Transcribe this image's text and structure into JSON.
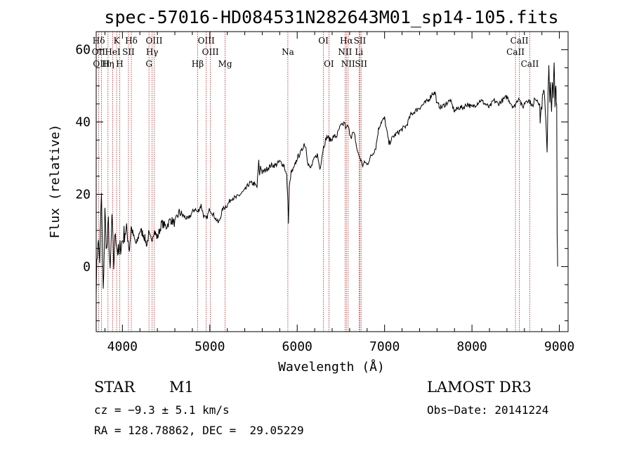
{
  "chart_data": {
    "type": "line",
    "title": "spec-57016-HD084531N282643M01_sp14-105.fits",
    "xlabel": "Wavelength (Å)",
    "ylabel": "Flux (relative)",
    "xlim": [
      3700,
      9100
    ],
    "ylim": [
      -18,
      65
    ],
    "xticks": [
      4000,
      5000,
      6000,
      7000,
      8000,
      9000
    ],
    "yticks": [
      0,
      20,
      40,
      60
    ],
    "series": [
      {
        "name": "spectrum",
        "x": [
          3700,
          3720,
          3740,
          3760,
          3780,
          3800,
          3820,
          3840,
          3860,
          3880,
          3900,
          3920,
          3940,
          3960,
          3980,
          4000,
          4030,
          4060,
          4080,
          4100,
          4130,
          4160,
          4200,
          4240,
          4280,
          4300,
          4330,
          4360,
          4400,
          4450,
          4500,
          4550,
          4600,
          4650,
          4700,
          4750,
          4800,
          4830,
          4860,
          4900,
          4930,
          4960,
          5000,
          5050,
          5100,
          5150,
          5200,
          5250,
          5300,
          5350,
          5400,
          5450,
          5500,
          5540,
          5560,
          5570,
          5580,
          5600,
          5650,
          5700,
          5750,
          5800,
          5850,
          5880,
          5895,
          5900,
          5910,
          5930,
          5960,
          6000,
          6050,
          6080,
          6100,
          6120,
          6150,
          6200,
          6230,
          6260,
          6300,
          6340,
          6380,
          6420,
          6450,
          6480,
          6500,
          6520,
          6540,
          6560,
          6580,
          6600,
          6620,
          6640,
          6660,
          6680,
          6700,
          6720,
          6750,
          6780,
          6800,
          6830,
          6860,
          6900,
          6930,
          6960,
          7000,
          7050,
          7100,
          7150,
          7200,
          7250,
          7300,
          7350,
          7400,
          7450,
          7500,
          7550,
          7580,
          7600,
          7650,
          7700,
          7750,
          7800,
          7850,
          7900,
          7950,
          8000,
          8050,
          8100,
          8150,
          8200,
          8250,
          8300,
          8350,
          8400,
          8450,
          8480,
          8500,
          8520,
          8540,
          8560,
          8580,
          8600,
          8620,
          8650,
          8680,
          8700,
          8720,
          8740,
          8760,
          8770,
          8780,
          8800,
          8820,
          8840,
          8850,
          8860,
          8870,
          8880,
          8890,
          8900,
          8910,
          8920,
          8930,
          8940,
          8950,
          8960,
          8965,
          8970,
          8975,
          8980
        ],
        "values": [
          -5,
          8,
          2,
          20,
          -8,
          15,
          4,
          12,
          -3,
          14,
          0,
          10,
          5,
          3,
          6,
          7,
          10,
          9,
          5,
          11,
          8,
          6,
          10,
          9,
          6,
          9,
          7,
          10,
          8,
          12,
          11,
          13,
          12,
          15,
          14,
          13,
          15,
          16,
          15,
          17,
          14,
          13,
          16,
          14,
          12,
          16,
          17,
          19,
          19,
          20,
          21,
          23,
          23,
          22,
          29,
          25,
          28,
          26,
          27,
          28,
          28,
          29,
          28,
          25,
          17,
          12,
          22,
          26,
          27,
          30,
          32,
          34,
          33,
          29,
          27,
          30,
          31,
          27,
          33,
          36,
          35,
          36,
          36,
          38,
          39,
          39,
          40,
          38,
          39,
          37,
          36,
          37,
          36,
          33,
          31,
          30,
          28,
          29,
          28,
          30,
          31,
          33,
          38,
          40,
          41,
          34,
          36,
          37,
          38,
          39,
          42,
          43,
          44,
          45,
          46,
          48,
          48,
          45,
          44,
          45,
          46,
          43,
          44,
          44,
          45,
          44,
          45,
          46,
          45,
          44,
          46,
          45,
          46,
          47,
          45,
          44,
          45,
          46,
          47,
          45,
          44,
          45,
          46,
          46,
          45,
          44,
          47,
          46,
          47,
          45,
          41,
          45,
          48,
          44,
          38,
          33,
          47,
          55,
          44,
          53,
          41,
          50,
          47,
          57,
          46,
          52,
          45,
          46,
          10,
          0
        ]
      }
    ],
    "line_markers": [
      {
        "label": "Hδ",
        "wavelength": 3729,
        "row": 1
      },
      {
        "label": "OII",
        "wavelength": 3727,
        "row": 2
      },
      {
        "label": "OIII",
        "wavelength": 3760,
        "row": 3
      },
      {
        "label": "K",
        "wavelength": 3934,
        "row": 1
      },
      {
        "label": "HeI",
        "wavelength": 3889,
        "row": 2
      },
      {
        "label": "Hη",
        "wavelength": 3835,
        "row": 3
      },
      {
        "label": "SII",
        "wavelength": 4069,
        "row": 2
      },
      {
        "label": "H",
        "wavelength": 3969,
        "row": 3
      },
      {
        "label": "Hδ",
        "wavelength": 4102,
        "row": 1
      },
      {
        "label": "OIII",
        "wavelength": 4363,
        "row": 1
      },
      {
        "label": "Hγ",
        "wavelength": 4340,
        "row": 2
      },
      {
        "label": "G",
        "wavelength": 4304,
        "row": 3
      },
      {
        "label": "Hβ",
        "wavelength": 4861,
        "row": 3
      },
      {
        "label": "OIII",
        "wavelength": 4959,
        "row": 1
      },
      {
        "label": "OIII",
        "wavelength": 5007,
        "row": 2
      },
      {
        "label": "Mg",
        "wavelength": 5175,
        "row": 3
      },
      {
        "label": "Na",
        "wavelength": 5893,
        "row": 2
      },
      {
        "label": "OI",
        "wavelength": 6300,
        "row": 1
      },
      {
        "label": "OI",
        "wavelength": 6363,
        "row": 3
      },
      {
        "label": "Hα",
        "wavelength": 6563,
        "row": 1
      },
      {
        "label": "SII",
        "wavelength": 6717,
        "row": 1
      },
      {
        "label": "NII",
        "wavelength": 6548,
        "row": 2
      },
      {
        "label": "Li",
        "wavelength": 6708,
        "row": 2
      },
      {
        "label": "NII",
        "wavelength": 6583,
        "row": 3
      },
      {
        "label": "SII",
        "wavelength": 6731,
        "row": 3
      },
      {
        "label": "CaII",
        "wavelength": 8542,
        "row": 1
      },
      {
        "label": "CaII",
        "wavelength": 8498,
        "row": 2
      },
      {
        "label": "CaII",
        "wavelength": 8662,
        "row": 3
      }
    ],
    "marker_lines": [
      3727,
      3760,
      3835,
      3889,
      3934,
      3969,
      4069,
      4102,
      4304,
      4340,
      4363,
      4861,
      4959,
      5007,
      5175,
      5893,
      6300,
      6363,
      6548,
      6563,
      6583,
      6708,
      6717,
      6731,
      8498,
      8542,
      8662
    ]
  },
  "info": {
    "object_class": "STAR",
    "subclass": "M1",
    "survey": "LAMOST DR3",
    "cz": "cz = −9.3 ± 5.1 km/s",
    "obs_date": "Obs−Date: 20141224",
    "coords": "RA = 128.78862, DEC =  29.05229"
  },
  "colors": {
    "line": "#000000",
    "marker": "#b22222",
    "background": "#ffffff"
  }
}
